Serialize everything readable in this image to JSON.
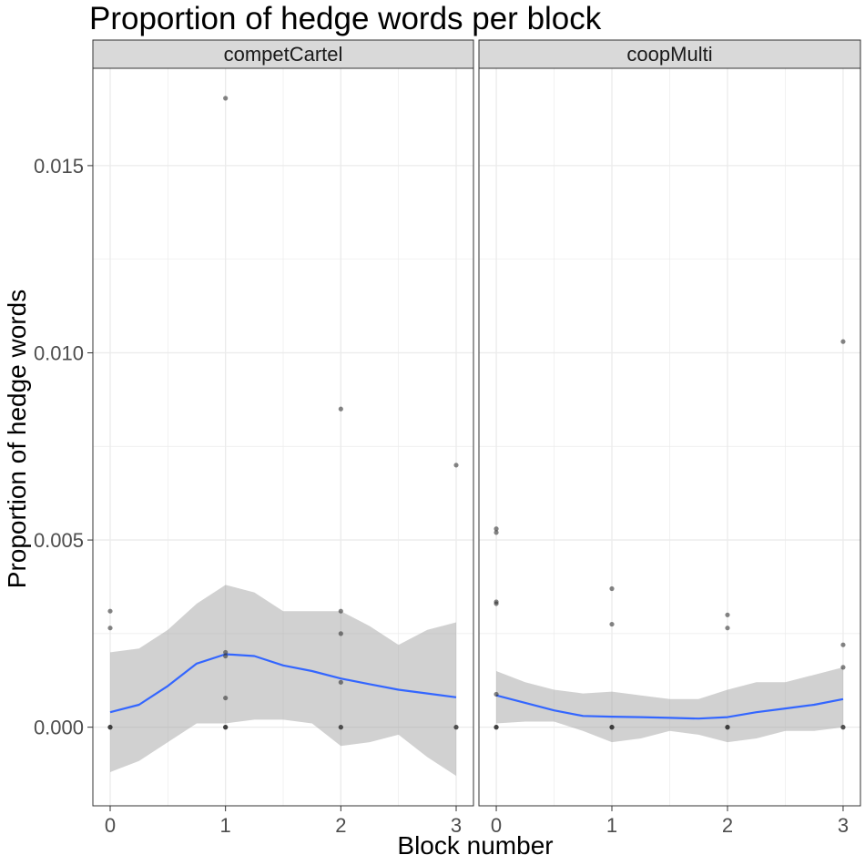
{
  "chart_data": {
    "type": "scatter",
    "title": "Proportion of hedge words per block",
    "xlabel": "Block number",
    "ylabel": "Proportion of hedge words",
    "xlim": [
      -0.15,
      3.15
    ],
    "ylim": [
      -0.0021,
      0.0176
    ],
    "x_ticks": [
      0,
      1,
      2,
      3
    ],
    "x_tick_labels": [
      "0",
      "1",
      "2",
      "3"
    ],
    "y_ticks": [
      0,
      0.005,
      0.01,
      0.015
    ],
    "y_tick_labels": [
      "0.000",
      "0.005",
      "0.010",
      "0.015"
    ],
    "grid": true,
    "colors": {
      "points": "#333333",
      "smooth_line": "#3366ff",
      "ribbon": "#999999",
      "strip_fill": "#d9d9d9",
      "grid": "#ebebeb"
    },
    "panels": [
      {
        "name": "competCartel",
        "points": [
          {
            "x": 0,
            "y": 0.0031
          },
          {
            "x": 0,
            "y": 0.00265
          },
          {
            "x": 0,
            "y": 0
          },
          {
            "x": 0,
            "y": 0
          },
          {
            "x": 0,
            "y": 0
          },
          {
            "x": 1,
            "y": 0.0168
          },
          {
            "x": 1,
            "y": 0.002
          },
          {
            "x": 1,
            "y": 0.0019
          },
          {
            "x": 1,
            "y": 0.00078
          },
          {
            "x": 1,
            "y": 0
          },
          {
            "x": 1,
            "y": 0
          },
          {
            "x": 1,
            "y": 0
          },
          {
            "x": 2,
            "y": 0.0085
          },
          {
            "x": 2,
            "y": 0.0031
          },
          {
            "x": 2,
            "y": 0.0025
          },
          {
            "x": 2,
            "y": 0.0012
          },
          {
            "x": 2,
            "y": 0
          },
          {
            "x": 2,
            "y": 0
          },
          {
            "x": 3,
            "y": 0.007
          },
          {
            "x": 3,
            "y": 0
          },
          {
            "x": 3,
            "y": 0
          }
        ],
        "smooth": {
          "x": [
            0,
            0.25,
            0.5,
            0.75,
            1,
            1.25,
            1.5,
            1.75,
            2,
            2.25,
            2.5,
            2.75,
            3
          ],
          "y": [
            0.0004,
            0.0006,
            0.0011,
            0.0017,
            0.00195,
            0.0019,
            0.00165,
            0.0015,
            0.0013,
            0.00115,
            0.001,
            0.0009,
            0.0008
          ],
          "ymin": [
            -0.0012,
            -0.0009,
            -0.0004,
            0.0001,
            0.0001,
            0.0002,
            0.0002,
            0.0001,
            -0.0005,
            -0.0004,
            -0.0002,
            -0.0008,
            -0.0013
          ],
          "ymax": [
            0.002,
            0.0021,
            0.0026,
            0.0033,
            0.0038,
            0.0036,
            0.0031,
            0.0031,
            0.0031,
            0.0027,
            0.0022,
            0.0026,
            0.0028
          ]
        }
      },
      {
        "name": "coopMulti",
        "points": [
          {
            "x": 0,
            "y": 0.0053
          },
          {
            "x": 0,
            "y": 0.0052
          },
          {
            "x": 0,
            "y": 0.00335
          },
          {
            "x": 0,
            "y": 0.0033
          },
          {
            "x": 0,
            "y": 0.00088
          },
          {
            "x": 0,
            "y": 0
          },
          {
            "x": 0,
            "y": 0
          },
          {
            "x": 0,
            "y": 0
          },
          {
            "x": 1,
            "y": 0.0037
          },
          {
            "x": 1,
            "y": 0.00275
          },
          {
            "x": 1,
            "y": 0
          },
          {
            "x": 1,
            "y": 0
          },
          {
            "x": 1,
            "y": 0
          },
          {
            "x": 2,
            "y": 0.003
          },
          {
            "x": 2,
            "y": 0.00265
          },
          {
            "x": 2,
            "y": 0
          },
          {
            "x": 2,
            "y": 0
          },
          {
            "x": 2,
            "y": 0
          },
          {
            "x": 3,
            "y": 0.0103
          },
          {
            "x": 3,
            "y": 0.0022
          },
          {
            "x": 3,
            "y": 0.0016
          },
          {
            "x": 3,
            "y": 0
          },
          {
            "x": 3,
            "y": 0
          }
        ],
        "smooth": {
          "x": [
            0,
            0.25,
            0.5,
            0.75,
            1,
            1.25,
            1.5,
            1.75,
            2,
            2.25,
            2.5,
            2.75,
            3
          ],
          "y": [
            0.00085,
            0.00065,
            0.00045,
            0.0003,
            0.00028,
            0.00027,
            0.00025,
            0.00023,
            0.00027,
            0.0004,
            0.0005,
            0.0006,
            0.00075
          ],
          "ymin": [
            0.0001,
            0.00015,
            0.00015,
            -0.0001,
            -0.0004,
            -0.0003,
            -0.0001,
            -0.0002,
            -0.0004,
            -0.0003,
            -0.0001,
            -0.0001,
            0
          ],
          "ymax": [
            0.0015,
            0.0012,
            0.001,
            0.0009,
            0.00095,
            0.00085,
            0.00075,
            0.00075,
            0.001,
            0.0012,
            0.0012,
            0.0014,
            0.0016
          ]
        }
      }
    ]
  }
}
